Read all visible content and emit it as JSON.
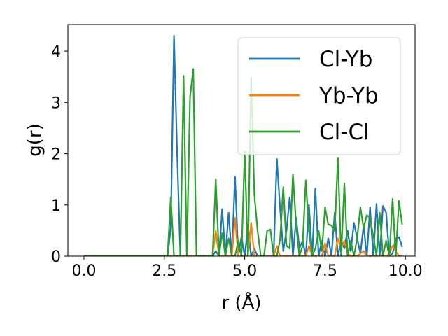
{
  "chart_data": {
    "type": "line",
    "title": "",
    "xlabel": "r (Å)",
    "ylabel": "g(r)",
    "xlim": [
      -0.5,
      10.3
    ],
    "ylim": [
      0,
      4.52
    ],
    "x_ticks": [
      0.0,
      2.5,
      5.0,
      7.5,
      10.0
    ],
    "x_tick_labels": [
      "0.0",
      "2.5",
      "5.0",
      "7.5",
      "10.0"
    ],
    "y_ticks": [
      0,
      1,
      2,
      3,
      4
    ],
    "y_tick_labels": [
      "0",
      "1",
      "2",
      "3",
      "4"
    ],
    "grid": false,
    "legend_position": "top-right",
    "series": [
      {
        "name": "Cl-Yb",
        "color": "#1f77b4",
        "x": [
          0.0,
          2.6,
          2.7,
          2.8,
          2.9,
          3.0,
          4.0,
          4.1,
          4.2,
          4.3,
          4.4,
          4.5,
          4.6,
          4.7,
          4.8,
          4.9,
          5.0,
          5.1,
          5.2,
          5.3,
          5.4,
          5.5,
          5.6,
          5.7,
          5.8,
          5.9,
          6.0,
          6.1,
          6.2,
          6.3,
          6.4,
          6.5,
          6.6,
          6.7,
          6.8,
          6.9,
          7.0,
          7.1,
          7.2,
          7.3,
          7.4,
          7.5,
          7.6,
          7.7,
          7.8,
          7.9,
          8.0,
          8.1,
          8.2,
          8.3,
          8.4,
          8.5,
          8.6,
          8.7,
          8.8,
          8.9,
          9.0,
          9.1,
          9.2,
          9.3,
          9.4,
          9.5,
          9.6,
          9.7,
          9.8,
          9.9
        ],
        "y": [
          0,
          0,
          0.55,
          4.3,
          2.0,
          0,
          0,
          0.1,
          0.0,
          0.92,
          0.0,
          0.85,
          0.0,
          1.55,
          0.0,
          0.38,
          0.0,
          0.58,
          0.0,
          0.15,
          0.0,
          0.0,
          0.0,
          0.0,
          0.0,
          0.0,
          1.9,
          0.95,
          0.1,
          0.5,
          1.15,
          0.0,
          0.75,
          0.15,
          0.3,
          0.0,
          1.0,
          0.0,
          1.32,
          0.0,
          0.3,
          0.0,
          0.35,
          0.0,
          0.85,
          0.0,
          0.3,
          0.15,
          0.5,
          0.1,
          0.65,
          0.35,
          0.05,
          0.6,
          0.0,
          0.95,
          0.0,
          1.02,
          0.0,
          0.98,
          0.85,
          0.0,
          0.05,
          0.35,
          0.37,
          0.18
        ]
      },
      {
        "name": "Yb-Yb",
        "color": "#ff7f0e",
        "x": [
          0.0,
          3.9,
          4.0,
          4.1,
          4.2,
          4.3,
          4.4,
          4.5,
          4.6,
          4.7,
          4.8,
          4.9,
          5.0,
          5.1,
          5.2,
          5.3,
          5.4,
          5.8,
          5.9,
          6.0,
          6.1,
          6.2,
          6.3,
          6.9,
          7.0,
          7.1,
          7.2,
          7.3,
          7.4,
          7.5,
          7.6,
          7.7,
          7.8,
          7.9,
          8.0,
          8.1,
          8.2,
          8.3,
          8.4,
          8.5,
          8.6,
          8.7,
          8.8,
          8.9,
          9.0,
          9.4,
          9.5,
          9.6,
          9.7,
          9.8,
          9.9
        ],
        "y": [
          0,
          0,
          0.0,
          0.5,
          0.0,
          0.0,
          0.0,
          0.0,
          0.0,
          0.75,
          0.0,
          0.0,
          0.0,
          0.0,
          0.65,
          0.0,
          0.0,
          0.0,
          0.0,
          0.2,
          0.0,
          0.0,
          0.0,
          0.0,
          0.2,
          0.0,
          0.0,
          0.0,
          0.0,
          0.25,
          0.0,
          0.0,
          0.0,
          0.35,
          0.15,
          0.3,
          0.05,
          0.0,
          0.0,
          0.0,
          0.05,
          0.1,
          0.0,
          0.0,
          0.0,
          0.0,
          0.05,
          0.2,
          0.1,
          0.0,
          0.0
        ]
      },
      {
        "name": "Cl-Cl",
        "color": "#2ca02c",
        "x": [
          0.0,
          2.6,
          2.7,
          2.8,
          2.9,
          3.0,
          3.1,
          3.2,
          3.3,
          3.4,
          3.5,
          4.0,
          4.1,
          4.2,
          4.3,
          4.4,
          4.5,
          4.6,
          4.7,
          4.8,
          4.9,
          5.0,
          5.1,
          5.2,
          5.3,
          5.4,
          5.5,
          5.6,
          5.7,
          5.8,
          5.9,
          6.0,
          6.1,
          6.2,
          6.3,
          6.4,
          6.5,
          6.6,
          6.7,
          6.8,
          6.9,
          7.0,
          7.1,
          7.2,
          7.3,
          7.4,
          7.5,
          7.6,
          7.7,
          7.8,
          7.9,
          8.0,
          8.1,
          8.2,
          8.3,
          8.4,
          8.5,
          8.6,
          8.7,
          8.8,
          8.9,
          9.0,
          9.1,
          9.2,
          9.3,
          9.4,
          9.5,
          9.6,
          9.7,
          9.8,
          9.9
        ],
        "y": [
          0,
          0,
          1.15,
          0.0,
          0.0,
          0.0,
          3.52,
          0.0,
          3.1,
          3.65,
          0.0,
          0.0,
          1.5,
          0.0,
          0.45,
          0.0,
          0.35,
          0.0,
          0.0,
          0.3,
          0.0,
          2.05,
          0.0,
          3.47,
          1.2,
          0.5,
          0.0,
          0.0,
          0.5,
          0.52,
          0.0,
          0.0,
          0.32,
          1.35,
          0.2,
          0.15,
          1.6,
          0.6,
          0.0,
          0.2,
          1.48,
          0.5,
          0.0,
          0.15,
          0.5,
          0.1,
          0.95,
          0.62,
          0.6,
          0.5,
          1.92,
          0.0,
          1.42,
          0.0,
          0.3,
          0.0,
          0.35,
          0.95,
          0.55,
          0.8,
          0.75,
          0.4,
          0.0,
          0.85,
          0.0,
          0.3,
          0.0,
          1.12,
          0.0,
          1.08,
          0.62
        ]
      }
    ]
  }
}
